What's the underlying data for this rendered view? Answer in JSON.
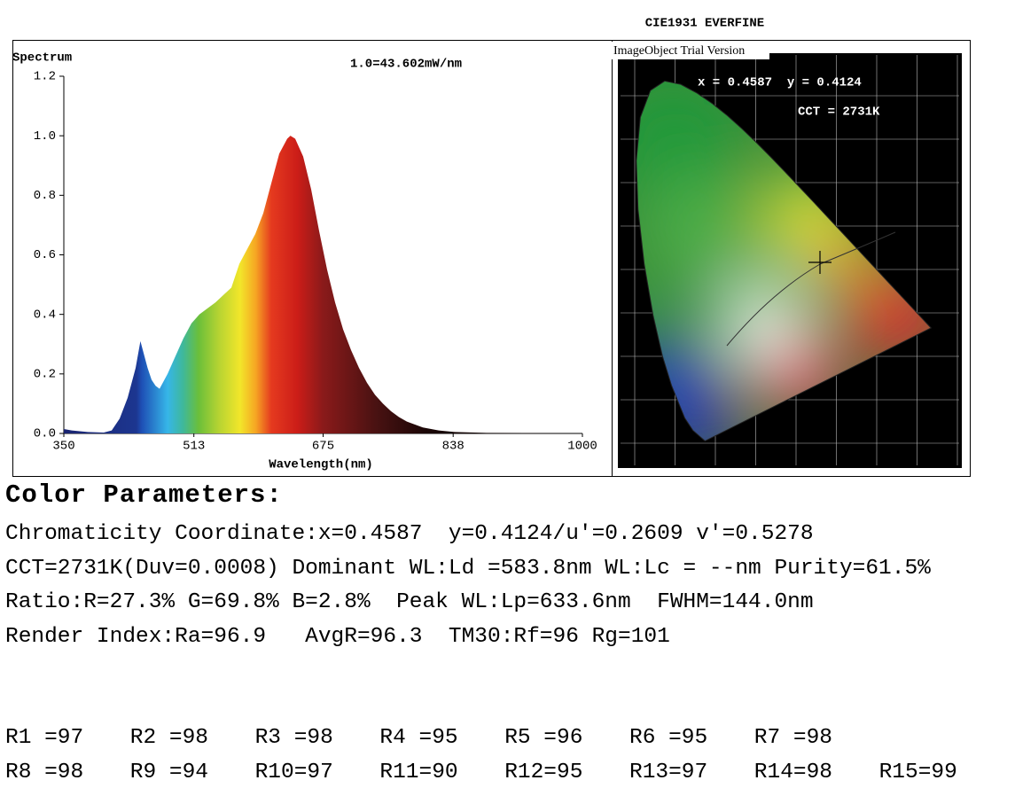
{
  "chart_data": {
    "type": "area",
    "title": "Spectrum",
    "annotation": "1.0=43.602mW/nm",
    "x_label": "Wavelength(nm)",
    "x": [
      350,
      360,
      380,
      400,
      410,
      420,
      430,
      440,
      446,
      455,
      460,
      465,
      470,
      480,
      490,
      500,
      510,
      520,
      540,
      560,
      570,
      580,
      590,
      600,
      610,
      620,
      630,
      634,
      640,
      650,
      660,
      670,
      680,
      690,
      700,
      710,
      720,
      730,
      740,
      750,
      760,
      770,
      780,
      800,
      820,
      840,
      880,
      1000
    ],
    "values": [
      0.015,
      0.01,
      0.005,
      0.003,
      0.01,
      0.05,
      0.12,
      0.22,
      0.31,
      0.22,
      0.18,
      0.16,
      0.15,
      0.2,
      0.26,
      0.32,
      0.37,
      0.4,
      0.44,
      0.49,
      0.57,
      0.62,
      0.67,
      0.74,
      0.84,
      0.94,
      0.99,
      1.0,
      0.99,
      0.93,
      0.82,
      0.68,
      0.55,
      0.44,
      0.35,
      0.28,
      0.22,
      0.17,
      0.13,
      0.1,
      0.075,
      0.055,
      0.04,
      0.02,
      0.01,
      0.005,
      0.002,
      0.001
    ],
    "xlim": [
      350,
      1000
    ],
    "xticks": [
      350,
      513,
      675,
      838,
      1000
    ],
    "ylim": [
      0,
      1.2
    ],
    "yticks": [
      {
        "value": 0,
        "label": "0.0"
      },
      0.2,
      0.4,
      0.6,
      0.8,
      {
        "value": 1,
        "label": "1.0"
      },
      1.2
    ]
  },
  "cie": {
    "title": "CIE1931 EVERFINE",
    "watermark": "ImageObject Trial Version",
    "coords": "x = 0.4587  y = 0.4124",
    "cct": "CCT = 2731K"
  },
  "parameters": {
    "heading": "Color Parameters:",
    "lines": [
      "Chromaticity Coordinate:x=0.4587  y=0.4124/u'=0.2609 v'=0.5278",
      "CCT=2731K(Duv=0.0008) Dominant WL:Ld =583.8nm WL:Lc = --nm Purity=61.5%",
      "Ratio:R=27.3% G=69.8% B=2.8%  Peak WL:Lp=633.6nm  FWHM=144.0nm",
      "Render Index:Ra=96.9   AvgR=96.3  TM30:Rf=96 Rg=101"
    ],
    "render_rows": [
      [
        "R1 =97",
        "R2 =98",
        "R3 =98",
        "R4 =95",
        "R5 =96",
        "R6 =95",
        "R7 =98"
      ],
      [
        "R8 =98",
        "R9 =94",
        "R10=97",
        "R11=90",
        "R12=95",
        "R13=97",
        "R14=98",
        "R15=99"
      ]
    ]
  }
}
